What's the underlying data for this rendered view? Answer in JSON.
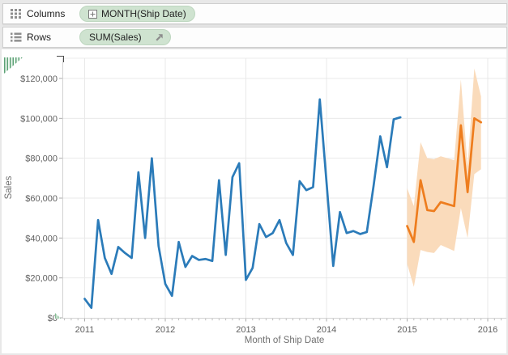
{
  "shelves": {
    "columns": {
      "label": "Columns",
      "pill": "MONTH(Ship Date)"
    },
    "rows": {
      "label": "Rows",
      "pill": "SUM(Sales)"
    }
  },
  "chart_data": {
    "type": "line",
    "title": "",
    "xlabel": "Month of Ship Date",
    "ylabel": "Sales",
    "x_tick_labels": [
      "2011",
      "2012",
      "2013",
      "2014",
      "2015",
      "2016"
    ],
    "y_tick_labels": [
      "$0",
      "$20,000",
      "$40,000",
      "$60,000",
      "$80,000",
      "$100,000",
      "$120,000"
    ],
    "y_tick_values": [
      0,
      20000,
      40000,
      60000,
      80000,
      100000,
      120000
    ],
    "ylim": [
      0,
      130000
    ],
    "months_per_x_tick": 12,
    "grid": true,
    "legend": "none",
    "series": [
      {
        "name": "actual-sales",
        "color": "#2b7bb9",
        "start_month": 0,
        "values": [
          9500,
          5000,
          49000,
          30000,
          22000,
          35500,
          32500,
          30000,
          73000,
          40000,
          80000,
          36000,
          17000,
          11000,
          38000,
          25500,
          31000,
          29000,
          29500,
          28500,
          69000,
          31500,
          70500,
          77500,
          19000,
          25000,
          47000,
          40500,
          42500,
          49000,
          37500,
          31500,
          68500,
          64000,
          65500,
          109500,
          68000,
          26000,
          53000,
          42500,
          43500,
          42000,
          43000,
          66000,
          91000,
          75500,
          99500,
          100500
        ]
      },
      {
        "name": "forecast-sales",
        "color": "#ee7d1e",
        "start_month": 48,
        "values": [
          46000,
          38000,
          69000,
          54000,
          53500,
          58000,
          57000,
          56000,
          96500,
          63000,
          100000,
          98000
        ]
      }
    ],
    "band": {
      "name": "forecast-confidence-band",
      "color": "#fadbbb",
      "start_month": 48,
      "upper": [
        65000,
        56000,
        88000,
        80000,
        79500,
        81000,
        80000,
        79000,
        119500,
        76000,
        125000,
        111000
      ],
      "lower": [
        27000,
        15500,
        34000,
        33000,
        32500,
        36500,
        35000,
        33500,
        55000,
        40000,
        72000,
        74500
      ]
    }
  },
  "colors": {
    "actual_line": "#2b7bb9",
    "forecast_line": "#ee7d1e",
    "forecast_band": "#fadbbb",
    "pill_background": "#cfe3d0",
    "gridline": "#e9e9e9",
    "axis_line": "#d2d2d2",
    "tick_label_text": "#5f5f5f",
    "axis_title_text": "#707070"
  },
  "icons": {
    "columns_shelf": "columns-grid-icon",
    "rows_shelf": "rows-list-icon",
    "month_pill": "expand-plus-icon",
    "sum_pill": "forecast-arrow-icon"
  }
}
